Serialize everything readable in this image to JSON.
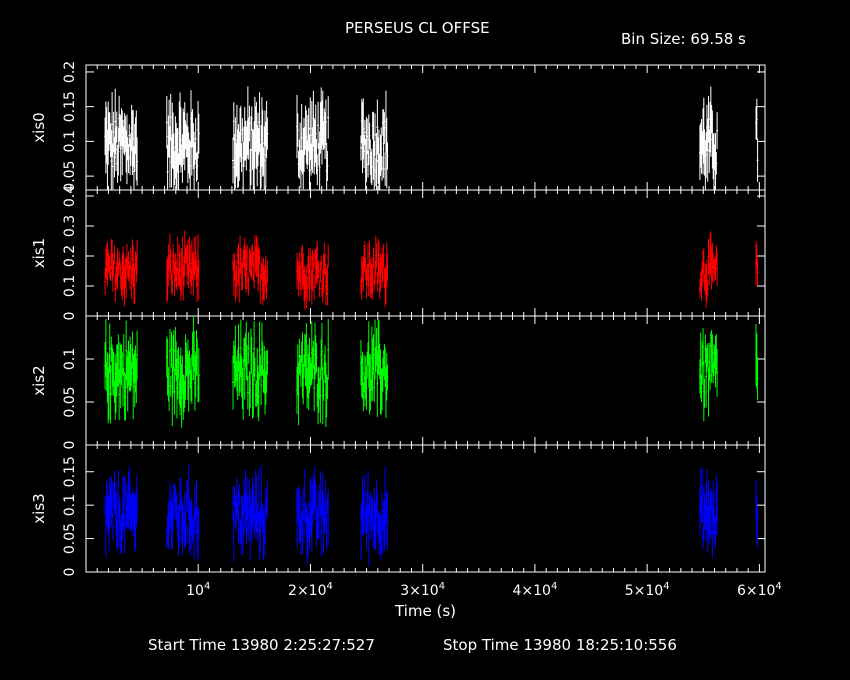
{
  "header": {
    "title": "PERSEUS CL OFFSE",
    "bin_size": "Bin Size: 69.58 s"
  },
  "footer": {
    "start_time": "Start Time 13980  2:25:27:527",
    "stop_time": "Stop Time 13980 18:25:10:556"
  },
  "chart_data": {
    "type": "line",
    "xlabel": "Time (s)",
    "xlim": [
      0,
      60500
    ],
    "x_ticks": [
      {
        "value": 10000,
        "label": "10^4"
      },
      {
        "value": 20000,
        "label": "2×10^4"
      },
      {
        "value": 30000,
        "label": "3×10^4"
      },
      {
        "value": 40000,
        "label": "4×10^4"
      },
      {
        "value": 50000,
        "label": "5×10^4"
      },
      {
        "value": 60000,
        "label": "6×10^4"
      }
    ],
    "observation_windows": [
      [
        1700,
        4600
      ],
      [
        7200,
        10100
      ],
      [
        13100,
        16200
      ],
      [
        18800,
        21600
      ],
      [
        24500,
        26900
      ],
      [
        54700,
        56300
      ],
      [
        59700,
        59900
      ]
    ],
    "series": [
      {
        "ylabel": "xis0",
        "color": "#ffffff",
        "ylim": [
          0.03,
          0.21
        ],
        "ytick_labels": [
          "0.05",
          "0.1",
          "0.15",
          "0.2"
        ],
        "ytick_values": [
          0.05,
          0.1,
          0.15,
          0.2
        ],
        "baseline": 0.095,
        "spread": 0.04
      },
      {
        "ylabel": "xis1",
        "color": "#ff0000",
        "ylim": [
          0,
          0.42
        ],
        "ytick_labels": [
          "0",
          "0.1",
          "0.2",
          "0.3",
          "0.4"
        ],
        "ytick_values": [
          0,
          0.1,
          0.2,
          0.3,
          0.4
        ],
        "baseline": 0.15,
        "spread": 0.06
      },
      {
        "ylabel": "xis2",
        "color": "#00ff00",
        "ylim": [
          0,
          0.15
        ],
        "ytick_labels": [
          "0",
          "0.05",
          "0.1"
        ],
        "ytick_values": [
          0,
          0.05,
          0.1
        ],
        "baseline": 0.085,
        "spread": 0.03
      },
      {
        "ylabel": "xis3",
        "color": "#0000ff",
        "ylim": [
          0,
          0.19
        ],
        "ytick_labels": [
          "0",
          "0.05",
          "0.1",
          "0.15"
        ],
        "ytick_values": [
          0,
          0.05,
          0.1,
          0.15
        ],
        "baseline": 0.085,
        "spread": 0.035
      }
    ]
  }
}
